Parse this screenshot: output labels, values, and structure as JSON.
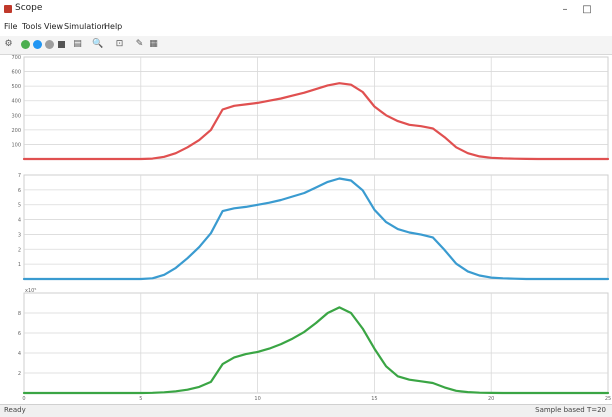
{
  "window": {
    "title": "Scope",
    "minimize": "–",
    "maximize": "□",
    "close": "✕"
  },
  "menu": [
    "File",
    "Tools",
    "View",
    "Simulation",
    "Help"
  ],
  "toolbar": {
    "icons": [
      "settings-icon",
      "run-icon",
      "step-back-icon",
      "step-forward-icon",
      "stop-icon",
      "layout-icon",
      "zoom-icon",
      "axes-icon",
      "highlight-icon",
      "style-icon"
    ]
  },
  "status": {
    "left": "Ready",
    "right": "Sample based  T=20"
  },
  "colors": {
    "series1": "#e05050",
    "series2": "#3a9bd0",
    "series3": "#3aa544",
    "grid": "#d9d9d9"
  },
  "chart_data": [
    {
      "type": "line",
      "x": [
        0,
        0.5,
        1,
        1.5,
        2,
        2.5,
        3,
        3.5,
        4,
        4.5,
        5,
        5.5,
        6,
        6.5,
        7,
        7.5,
        8,
        8.5,
        9,
        9.5,
        10,
        10.5,
        11,
        11.5,
        12,
        12.5,
        13,
        13.5,
        14,
        14.5,
        15,
        15.5,
        16,
        16.5,
        17,
        17.5,
        18,
        18.5,
        19,
        19.5,
        20,
        20.5,
        21,
        21.5,
        22,
        22.5,
        23,
        23.5,
        24,
        24.5,
        25
      ],
      "series": [
        {
          "values": [
            0,
            0,
            0,
            0,
            0,
            0,
            0,
            0,
            0,
            0,
            0,
            3,
            15,
            40,
            80,
            130,
            200,
            340,
            365,
            375,
            385,
            400,
            415,
            435,
            455,
            480,
            505,
            520,
            510,
            460,
            360,
            300,
            260,
            235,
            225,
            210,
            150,
            80,
            40,
            18,
            8,
            4,
            2,
            1,
            0,
            0,
            0,
            0,
            0,
            0,
            0
          ]
        }
      ],
      "yticks": [
        "700",
        "600",
        "500",
        "400",
        "300",
        "200",
        "100",
        ""
      ],
      "ylim": [
        0,
        700
      ],
      "xlim": [
        0,
        25
      ],
      "grid": true
    },
    {
      "type": "line",
      "x": [
        0,
        0.5,
        1,
        1.5,
        2,
        2.5,
        3,
        3.5,
        4,
        4.5,
        5,
        5.5,
        6,
        6.5,
        7,
        7.5,
        8,
        8.5,
        9,
        9.5,
        10,
        10.5,
        11,
        11.5,
        12,
        12.5,
        13,
        13.5,
        14,
        14.5,
        15,
        15.5,
        16,
        16.5,
        17,
        17.5,
        18,
        18.5,
        19,
        19.5,
        20,
        20.5,
        21,
        21.5,
        22,
        22.5,
        23,
        23.5,
        24,
        24.5,
        25
      ],
      "series": [
        {
          "values": [
            0,
            0,
            0,
            0,
            0,
            0,
            0,
            0,
            0,
            0,
            0,
            0.05,
            0.3,
            0.8,
            1.5,
            2.3,
            3.3,
            4.9,
            5.1,
            5.2,
            5.35,
            5.5,
            5.7,
            5.95,
            6.2,
            6.6,
            7.0,
            7.25,
            7.1,
            6.4,
            5.0,
            4.1,
            3.6,
            3.35,
            3.2,
            3.0,
            2.1,
            1.1,
            0.55,
            0.25,
            0.1,
            0.05,
            0.02,
            0,
            0,
            0,
            0,
            0,
            0,
            0,
            0
          ]
        }
      ],
      "yticks": [
        "7",
        "6",
        "5",
        "4",
        "3",
        "2",
        "1",
        ""
      ],
      "ylim": [
        0,
        7.5
      ],
      "xlim": [
        0,
        25
      ],
      "grid": true
    },
    {
      "type": "line",
      "x": [
        0,
        0.5,
        1,
        1.5,
        2,
        2.5,
        3,
        3.5,
        4,
        4.5,
        5,
        5.5,
        6,
        6.5,
        7,
        7.5,
        8,
        8.5,
        9,
        9.5,
        10,
        10.5,
        11,
        11.5,
        12,
        12.5,
        13,
        13.5,
        14,
        14.5,
        15,
        15.5,
        16,
        16.5,
        17,
        17.5,
        18,
        18.5,
        19,
        19.5,
        20,
        20.5,
        21,
        21.5,
        22,
        22.5,
        23,
        23.5,
        24,
        24.5,
        25
      ],
      "series": [
        {
          "values": [
            0,
            0,
            0,
            0,
            0,
            0,
            0,
            0,
            0,
            0,
            0,
            0.02,
            0.06,
            0.15,
            0.3,
            0.55,
            1.0,
            2.6,
            3.2,
            3.5,
            3.7,
            4.0,
            4.4,
            4.9,
            5.5,
            6.3,
            7.2,
            7.7,
            7.2,
            5.8,
            4.0,
            2.4,
            1.5,
            1.2,
            1.05,
            0.9,
            0.5,
            0.2,
            0.08,
            0.03,
            0.01,
            0,
            0,
            0,
            0,
            0,
            0,
            0,
            0,
            0,
            0
          ]
        }
      ],
      "yticks": [
        "",
        "8",
        "6",
        "4",
        "2",
        ""
      ],
      "yunit": "x10⁵",
      "ylim": [
        0,
        9
      ],
      "xlim": [
        0,
        25
      ],
      "xticks": [
        "0",
        "5",
        "10",
        "15",
        "20",
        "25"
      ],
      "grid": true
    }
  ]
}
